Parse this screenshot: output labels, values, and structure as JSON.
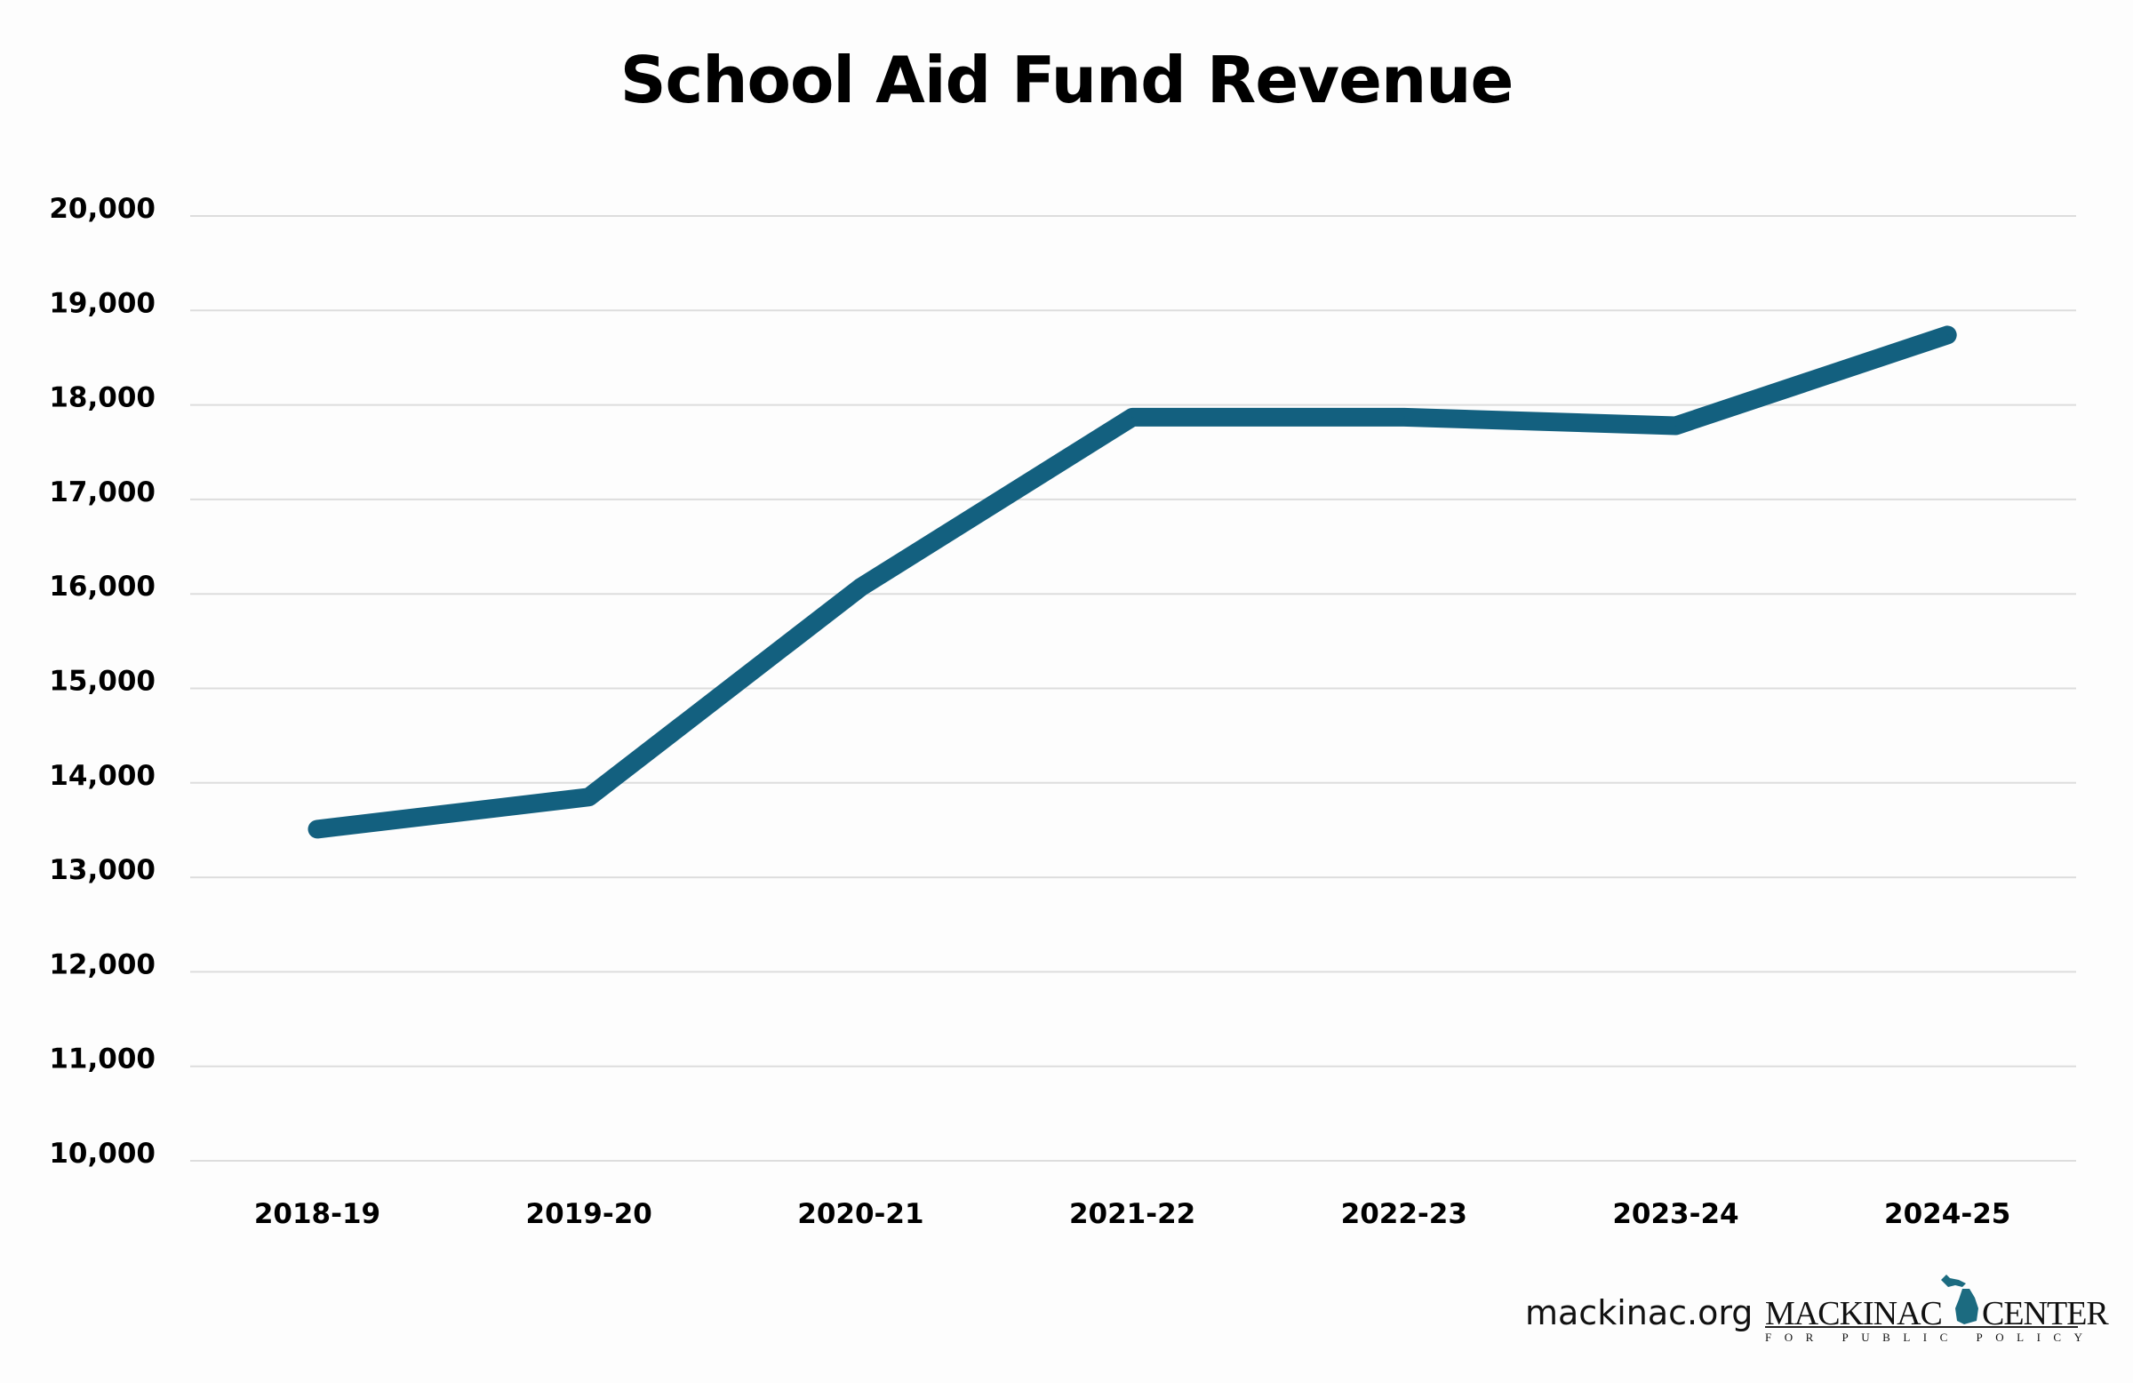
{
  "chart_data": {
    "type": "line",
    "title": "School Aid Fund Revenue",
    "xlabel": "",
    "ylabel": "",
    "categories": [
      "2018-19",
      "2019-20",
      "2020-21",
      "2021-22",
      "2022-23",
      "2023-24",
      "2024-25"
    ],
    "values": [
      13510,
      13850,
      16070,
      17870,
      17870,
      17780,
      18740
    ],
    "ylim": [
      10000,
      20000
    ],
    "yticks": [
      10000,
      11000,
      12000,
      13000,
      14000,
      15000,
      16000,
      17000,
      18000,
      19000,
      20000
    ],
    "ytick_labels": [
      "10,000",
      "11,000",
      "12,000",
      "13,000",
      "14,000",
      "15,000",
      "16,000",
      "17,000",
      "18,000",
      "19,000",
      "20,000"
    ],
    "grid": "horizontal",
    "line_color": "#13607f",
    "grid_color": "#dddddd"
  },
  "footer": {
    "site": "mackinac.org",
    "logo_left": "MACKINAC",
    "logo_right": "CENTER",
    "logo_sub": "FOR PUBLIC POLICY",
    "logo_color": "#1c6b80"
  }
}
